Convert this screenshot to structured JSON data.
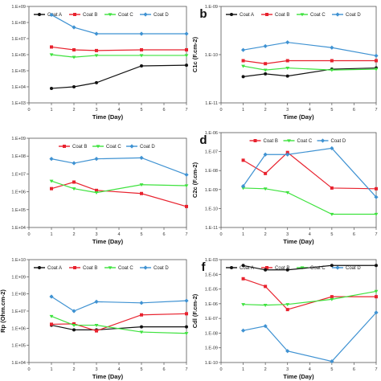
{
  "colors": {
    "A": "#111111",
    "B": "#e8222e",
    "C": "#3ee23e",
    "D": "#3f92d2"
  },
  "chart_data": [
    {
      "type": "line",
      "panel": "a",
      "letter": "",
      "x": [
        1,
        2,
        3,
        5,
        7
      ],
      "xlim": [
        0,
        7
      ],
      "xticks": [
        "0",
        "1",
        "2",
        "3",
        "4",
        "5",
        "6",
        "7"
      ],
      "xlabel": "Time (Day)",
      "ylabel": "",
      "log": true,
      "ylim_exp": [
        3,
        9
      ],
      "yticks": [
        "1.E+03",
        "1.E+04",
        "1.E+05",
        "1.E+06",
        "1.E+07",
        "1.E+08",
        "1.E+09"
      ],
      "legend": [
        {
          "key": "A",
          "name": "Coat A"
        },
        {
          "key": "B",
          "name": "Coat B"
        },
        {
          "key": "C",
          "name": "Coat C"
        },
        {
          "key": "D",
          "name": "Coat D"
        }
      ],
      "series": [
        {
          "key": "A",
          "name": "Coat A",
          "values": [
            8000,
            10000,
            18000,
            200000,
            220000
          ]
        },
        {
          "key": "B",
          "name": "Coat B",
          "values": [
            3000000,
            2000000,
            1800000,
            2000000,
            2000000
          ]
        },
        {
          "key": "C",
          "name": "Coat C",
          "values": [
            1000000,
            700000,
            900000,
            900000,
            900000
          ]
        },
        {
          "key": "D",
          "name": "Coat D",
          "values": [
            300000000,
            50000000,
            20000000,
            20000000,
            20000000
          ]
        }
      ]
    },
    {
      "type": "line",
      "panel": "b",
      "letter": "b",
      "x": [
        1,
        2,
        3,
        5,
        7
      ],
      "xlim": [
        0,
        7
      ],
      "xticks": [
        "0",
        "1",
        "2",
        "3",
        "4",
        "5",
        "6",
        "7"
      ],
      "xlabel": "Time (Day)",
      "ylabel": "C1c (F.cm-2)",
      "log": true,
      "ylim_exp": [
        -11,
        -9
      ],
      "yticks": [
        "1.E-11",
        "1.E-10",
        "1.E-09"
      ],
      "legend": [
        {
          "key": "A",
          "name": "Coat A"
        },
        {
          "key": "B",
          "name": "Coat B"
        },
        {
          "key": "C",
          "name": "Coat C"
        },
        {
          "key": "D",
          "name": "Coat D"
        }
      ],
      "series": [
        {
          "key": "A",
          "name": "Coat A",
          "values": [
            3.5e-11,
            4e-11,
            3.6e-11,
            5e-11,
            5.3e-11
          ]
        },
        {
          "key": "B",
          "name": "Coat B",
          "values": [
            7.5e-11,
            6.5e-11,
            7.5e-11,
            7.5e-11,
            7.5e-11
          ]
        },
        {
          "key": "C",
          "name": "Coat C",
          "values": [
            5.8e-11,
            4.8e-11,
            5.3e-11,
            4.8e-11,
            5e-11
          ]
        },
        {
          "key": "D",
          "name": "Coat D",
          "values": [
            1.25e-10,
            1.5e-10,
            1.8e-10,
            1.4e-10,
            9.5e-11
          ]
        }
      ]
    },
    {
      "type": "line",
      "panel": "c",
      "letter": "",
      "x": [
        1,
        2,
        3,
        5,
        7
      ],
      "xlim": [
        0,
        7
      ],
      "xticks": [
        "0",
        "1",
        "2",
        "3",
        "4",
        "5",
        "6",
        "7"
      ],
      "xlabel": "Time (Day)",
      "ylabel": "",
      "log": true,
      "ylim_exp": [
        4,
        9
      ],
      "yticks": [
        "1.E+04",
        "1.E+05",
        "1.E+06",
        "1.E+07",
        "1.E+08",
        "1.E+09"
      ],
      "legend": [
        {
          "key": "B",
          "name": "Coat B"
        },
        {
          "key": "C",
          "name": "Coat C"
        },
        {
          "key": "D",
          "name": "Coat D"
        }
      ],
      "series": [
        {
          "key": "B",
          "name": "Coat B",
          "values": [
            1500000,
            3500000,
            1200000,
            800000,
            150000
          ]
        },
        {
          "key": "C",
          "name": "Coat C",
          "values": [
            4000000,
            1500000,
            900000,
            2500000,
            2200000
          ]
        },
        {
          "key": "D",
          "name": "Coat D",
          "values": [
            70000000,
            40000000,
            70000000,
            80000000,
            9000000
          ]
        }
      ]
    },
    {
      "type": "line",
      "panel": "d",
      "letter": "d",
      "x": [
        1,
        2,
        3,
        5,
        7
      ],
      "xlim": [
        0,
        7
      ],
      "xticks": [
        "0",
        "1",
        "2",
        "3",
        "4",
        "5",
        "6",
        "7"
      ],
      "xlabel": "Time (Day)",
      "ylabel": "C2c (F.cm-2)",
      "log": true,
      "ylim_exp": [
        -11,
        -6
      ],
      "yticks": [
        "1.E-11",
        "1.E-10",
        "1.E-09",
        "1.E-08",
        "1.E-07",
        "1.E-06"
      ],
      "legend": [
        {
          "key": "B",
          "name": "Coat B"
        },
        {
          "key": "C",
          "name": "Coat C"
        },
        {
          "key": "D",
          "name": "Coat D"
        }
      ],
      "series": [
        {
          "key": "B",
          "name": "Coat B",
          "values": [
            3.5e-08,
            7e-09,
            9e-08,
            1.2e-09,
            1.1e-09
          ]
        },
        {
          "key": "C",
          "name": "Coat C",
          "values": [
            1.2e-09,
            1.1e-09,
            7e-10,
            5e-11,
            5e-11
          ]
        },
        {
          "key": "D",
          "name": "Coat D",
          "values": [
            1.5e-09,
            7e-08,
            7e-08,
            1.5e-07,
            4e-10
          ]
        }
      ]
    },
    {
      "type": "line",
      "panel": "e",
      "letter": "",
      "x": [
        1,
        2,
        3,
        5,
        7
      ],
      "xlim": [
        0,
        7
      ],
      "xticks": [
        "0",
        "1",
        "2",
        "3",
        "4",
        "5",
        "6",
        "7"
      ],
      "xlabel": "Time (Day)",
      "ylabel": "Rp (Ohm.cm-2)",
      "log": true,
      "ylim_exp": [
        4,
        10
      ],
      "yticks": [
        "1.E+04",
        "1.E+05",
        "1.E+06",
        "1.E+07",
        "1.E+08",
        "1.E+09",
        "1.E+10"
      ],
      "legend": [
        {
          "key": "A",
          "name": "Coat A"
        },
        {
          "key": "B",
          "name": "Coat B"
        },
        {
          "key": "C",
          "name": "Coat C"
        },
        {
          "key": "D",
          "name": "Coat D"
        }
      ],
      "series": [
        {
          "key": "A",
          "name": "Coat A",
          "values": [
            1500000,
            800000,
            800000,
            1200000,
            1200000
          ]
        },
        {
          "key": "B",
          "name": "Coat B",
          "values": [
            1700000,
            1800000,
            700000,
            6000000,
            7000000
          ]
        },
        {
          "key": "C",
          "name": "Coat C",
          "values": [
            5000000,
            1500000,
            1500000,
            600000,
            500000
          ]
        },
        {
          "key": "D",
          "name": "Coat D",
          "values": [
            70000000,
            10000000,
            35000000,
            30000000,
            40000000
          ]
        }
      ]
    },
    {
      "type": "line",
      "panel": "f",
      "letter": "f",
      "x": [
        1,
        2,
        3,
        5,
        7
      ],
      "xlim": [
        0,
        7
      ],
      "xticks": [
        "0",
        "1",
        "2",
        "3",
        "4",
        "5",
        "6",
        "7"
      ],
      "xlabel": "Time (Day)",
      "ylabel": "Cdl (F.cm-2)",
      "log": true,
      "ylim_exp": [
        -10,
        -3
      ],
      "yticks": [
        "1.E-10",
        "1.E-09",
        "1.E-08",
        "1.E-07",
        "1.E-06",
        "1.E-05",
        "1.E-04",
        "1.E-03"
      ],
      "legend": [
        {
          "key": "A",
          "name": "Coat A"
        },
        {
          "key": "B",
          "name": "Coat B"
        },
        {
          "key": "C",
          "name": "Coat C"
        },
        {
          "key": "D",
          "name": "Coat D"
        }
      ],
      "series": [
        {
          "key": "A",
          "name": "Coat A",
          "values": [
            0.0004,
            0.0002,
            0.0002,
            0.0004,
            0.0004
          ]
        },
        {
          "key": "B",
          "name": "Coat B",
          "values": [
            5e-05,
            1.5e-05,
            4e-07,
            3e-06,
            3e-06
          ]
        },
        {
          "key": "C",
          "name": "Coat C",
          "values": [
            9e-07,
            8e-07,
            9e-07,
            2e-06,
            7e-06
          ]
        },
        {
          "key": "D",
          "name": "Coat D",
          "values": [
            1.5e-08,
            3e-08,
            6e-10,
            1.2e-10,
            2.5e-07
          ]
        }
      ]
    }
  ]
}
